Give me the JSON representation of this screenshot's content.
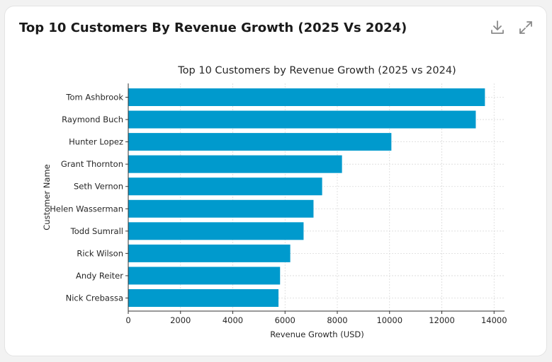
{
  "card": {
    "title": "Top 10 Customers By Revenue Growth (2025 Vs 2024)",
    "download_icon": "download-icon",
    "expand_icon": "expand-icon"
  },
  "chart_data": {
    "type": "bar",
    "orientation": "horizontal",
    "title": "Top 10 Customers by Revenue Growth (2025 vs 2024)",
    "xlabel": "Revenue Growth (USD)",
    "ylabel": "Customer Name",
    "categories": [
      "Tom Ashbrook",
      "Raymond Buch",
      "Hunter Lopez",
      "Grant Thornton",
      "Seth Vernon",
      "Helen Wasserman",
      "Todd Sumrall",
      "Rick Wilson",
      "Andy Reiter",
      "Nick Crebassa"
    ],
    "values": [
      13650,
      13300,
      10070,
      8180,
      7420,
      7090,
      6710,
      6200,
      5810,
      5750
    ],
    "xlim": [
      0,
      14400
    ],
    "xticks": [
      0,
      2000,
      4000,
      6000,
      8000,
      10000,
      12000,
      14000
    ],
    "grid": true,
    "bar_color": "#009ACD"
  }
}
